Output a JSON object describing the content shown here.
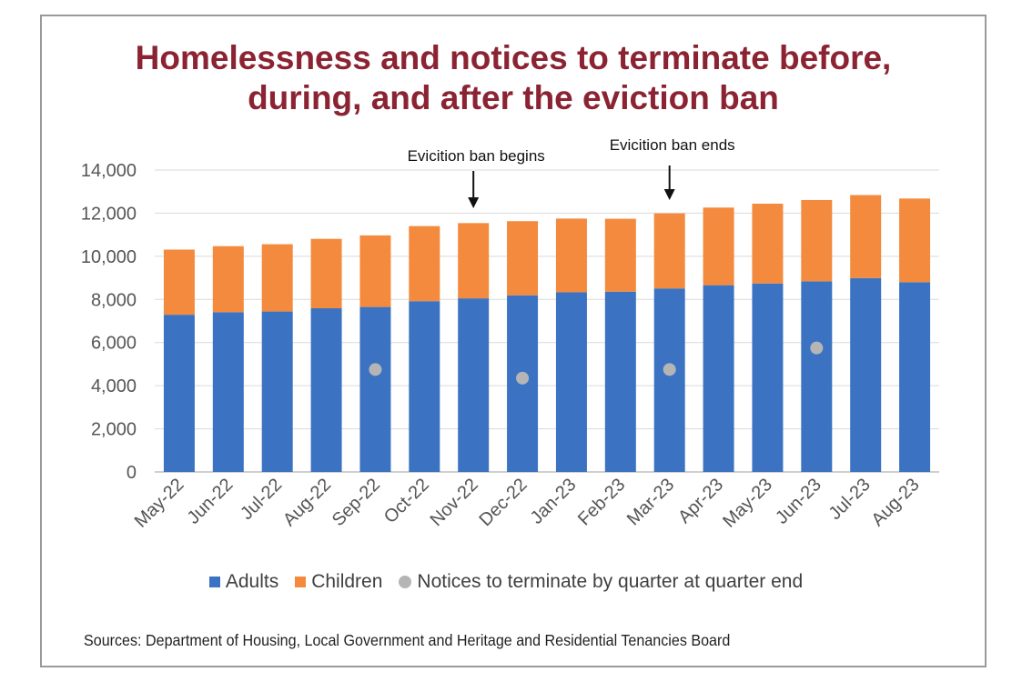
{
  "title_lines": [
    "Homelessness and notices to terminate before,",
    "during, and after the eviction ban"
  ],
  "source": "Sources: Department of Housing, Local Government and Heritage and Residential Tenancies Board",
  "colors": {
    "adults": "#3b73c2",
    "children": "#f38a3d",
    "notices": "#b5b5b5",
    "title": "#8b2332",
    "grid": "#d9d9d9",
    "axis": "#bfbfbf"
  },
  "chart_data": {
    "type": "bar",
    "stacked": true,
    "categories": [
      "May-22",
      "Jun-22",
      "Jul-22",
      "Aug-22",
      "Sep-22",
      "Oct-22",
      "Nov-22",
      "Dec-22",
      "Jan-23",
      "Feb-23",
      "Mar-23",
      "Apr-23",
      "May-23",
      "Jun-23",
      "Jul-23",
      "Aug-23"
    ],
    "series": [
      {
        "name": "Adults",
        "color": "#3b73c2",
        "values": [
          7290,
          7410,
          7440,
          7590,
          7650,
          7920,
          8050,
          8190,
          8330,
          8360,
          8510,
          8660,
          8740,
          8840,
          8990,
          8800
        ]
      },
      {
        "name": "Children",
        "color": "#f38a3d",
        "values": [
          3020,
          3060,
          3120,
          3220,
          3320,
          3480,
          3490,
          3440,
          3420,
          3380,
          3480,
          3600,
          3700,
          3770,
          3850,
          3880
        ]
      }
    ],
    "scatter_series": {
      "name": "Notices to terminate by quarter at quarter end",
      "color": "#b5b5b5",
      "points": [
        {
          "x": "Sep-22",
          "y": 4750
        },
        {
          "x": "Dec-22",
          "y": 4350
        },
        {
          "x": "Mar-23",
          "y": 4750
        },
        {
          "x": "Jun-23",
          "y": 5750
        }
      ]
    },
    "ylim": [
      0,
      14000
    ],
    "yticks": [
      0,
      2000,
      4000,
      6000,
      8000,
      10000,
      12000,
      14000
    ],
    "ytick_labels": [
      "0",
      "2,000",
      "4,000",
      "6,000",
      "8,000",
      "10,000",
      "12,000",
      "14,000"
    ],
    "grid": true,
    "legend_position": "bottom",
    "annotations": [
      {
        "text": "Evicition ban begins",
        "x": "Nov-22",
        "arrow": "down"
      },
      {
        "text": "Evicition ban ends",
        "x": "Mar-23",
        "arrow": "down"
      }
    ]
  },
  "legend": [
    {
      "label": "Adults",
      "shape": "square",
      "color": "#3b73c2"
    },
    {
      "label": "Children",
      "shape": "square",
      "color": "#f38a3d"
    },
    {
      "label": "Notices to terminate by quarter at quarter end",
      "shape": "circle",
      "color": "#b5b5b5"
    }
  ]
}
